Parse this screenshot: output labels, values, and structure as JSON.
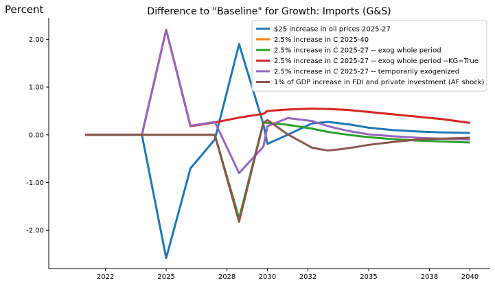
{
  "chart_data": {
    "type": "line",
    "title": "Difference to \"Baseline\" for Growth: Imports (G&S)",
    "ylabel": "Percent",
    "xlabel": "",
    "x_range": [
      2019.2,
      2041.0
    ],
    "ylim": [
      -2.8,
      2.45
    ],
    "x_ticks": [
      2022,
      2025,
      2028,
      2030,
      2032,
      2035,
      2038,
      2040
    ],
    "x_tick_labels": [
      "2022",
      "2025",
      "2028",
      "2030",
      "2032",
      "2035",
      "2038",
      "2040"
    ],
    "y_ticks": [
      -2,
      -1,
      0,
      1,
      2
    ],
    "y_tick_labels": [
      "-2.00",
      "-1.00",
      "0.00",
      "1.00",
      "2.00"
    ],
    "grid": false,
    "legend_position": "top-right",
    "series": [
      {
        "name": "$25 increase in oil prices 2025-27",
        "color": "#1f77b4",
        "points": [
          [
            2021,
            0
          ],
          [
            2022.2,
            0
          ],
          [
            2023.8,
            0
          ],
          [
            2025,
            -2.58
          ],
          [
            2026.2,
            -0.7
          ],
          [
            2027.4,
            -0.1
          ],
          [
            2028.6,
            1.9
          ],
          [
            2029.8,
            0.22
          ],
          [
            2030,
            -0.19
          ],
          [
            2031,
            0
          ],
          [
            2032.2,
            0.24
          ],
          [
            2033,
            0.27
          ],
          [
            2034,
            0.22
          ],
          [
            2035,
            0.15
          ],
          [
            2036.2,
            0.1
          ],
          [
            2037.4,
            0.07
          ],
          [
            2038.6,
            0.05
          ],
          [
            2040,
            0.04
          ]
        ]
      },
      {
        "name": "2.5% increase in C 2025-40",
        "color": "#ff7f0e",
        "points": [
          [
            2021,
            0
          ],
          [
            2022.2,
            0
          ],
          [
            2023.8,
            0
          ],
          [
            2025,
            2.2
          ],
          [
            2026.2,
            0.18
          ],
          [
            2027.4,
            0.26
          ],
          [
            2028.6,
            0.36
          ],
          [
            2029.8,
            0.44
          ],
          [
            2030,
            0.5
          ],
          [
            2031,
            0.53
          ],
          [
            2032.2,
            0.55
          ],
          [
            2033,
            0.54
          ],
          [
            2034,
            0.52
          ],
          [
            2035,
            0.48
          ],
          [
            2036.2,
            0.43
          ],
          [
            2037.4,
            0.38
          ],
          [
            2038.6,
            0.33
          ],
          [
            2040,
            0.25
          ]
        ]
      },
      {
        "name": "2.5% increase in C 2025-27 -- exog whole period",
        "color": "#2ca02c",
        "points": [
          [
            2021,
            0
          ],
          [
            2022.2,
            0
          ],
          [
            2023.8,
            0
          ],
          [
            2025,
            0
          ],
          [
            2026.2,
            0
          ],
          [
            2027.4,
            0
          ],
          [
            2028.6,
            -1.75
          ],
          [
            2029.8,
            0.26
          ],
          [
            2030,
            0.25
          ],
          [
            2031,
            0.21
          ],
          [
            2032.2,
            0.13
          ],
          [
            2033,
            0.06
          ],
          [
            2034,
            0
          ],
          [
            2035,
            -0.05
          ],
          [
            2036.2,
            -0.09
          ],
          [
            2037.4,
            -0.12
          ],
          [
            2038.6,
            -0.14
          ],
          [
            2040,
            -0.16
          ]
        ]
      },
      {
        "name": "2.5% increase in C 2025-27 -- exog whole period --KG=True",
        "color": "#d62728",
        "points": [
          [
            2021,
            0
          ],
          [
            2022.2,
            0
          ],
          [
            2023.8,
            0
          ],
          [
            2025,
            2.2
          ],
          [
            2026.2,
            0.18
          ],
          [
            2027.4,
            0.26
          ],
          [
            2028.6,
            0.36
          ],
          [
            2029.8,
            0.44
          ],
          [
            2030,
            0.5
          ],
          [
            2031,
            0.53
          ],
          [
            2032.2,
            0.55
          ],
          [
            2033,
            0.54
          ],
          [
            2034,
            0.52
          ],
          [
            2035,
            0.48
          ],
          [
            2036.2,
            0.43
          ],
          [
            2037.4,
            0.38
          ],
          [
            2038.6,
            0.33
          ],
          [
            2040,
            0.25
          ]
        ]
      },
      {
        "name": "2.5% increase in C 2025-27 -- temporarily exogenized",
        "color": "#9467bd",
        "points": [
          [
            2021,
            0
          ],
          [
            2022.2,
            0
          ],
          [
            2023.8,
            0
          ],
          [
            2025,
            2.2
          ],
          [
            2026.2,
            0.19
          ],
          [
            2027.4,
            0.27
          ],
          [
            2028.6,
            -0.8
          ],
          [
            2029.8,
            -0.25
          ],
          [
            2030,
            0.18
          ],
          [
            2031,
            0.35
          ],
          [
            2032.2,
            0.29
          ],
          [
            2033,
            0.18
          ],
          [
            2034,
            0.08
          ],
          [
            2035,
            0.01
          ],
          [
            2036.2,
            -0.03
          ],
          [
            2037.4,
            -0.06
          ],
          [
            2038.6,
            -0.08
          ],
          [
            2040,
            -0.1
          ]
        ]
      },
      {
        "name": "1% of GDP increase in FDI and private investment (AF shock)",
        "color": "#8c564b",
        "points": [
          [
            2021,
            0
          ],
          [
            2022.2,
            0
          ],
          [
            2023.8,
            0
          ],
          [
            2025,
            0
          ],
          [
            2026.2,
            0
          ],
          [
            2027.4,
            0
          ],
          [
            2028.6,
            -1.82
          ],
          [
            2029.8,
            0.25
          ],
          [
            2030,
            0.31
          ],
          [
            2031,
            0.01
          ],
          [
            2032.2,
            -0.27
          ],
          [
            2033,
            -0.33
          ],
          [
            2034,
            -0.28
          ],
          [
            2035,
            -0.21
          ],
          [
            2036.2,
            -0.15
          ],
          [
            2037.4,
            -0.1
          ],
          [
            2038.6,
            -0.08
          ],
          [
            2040,
            -0.06
          ]
        ]
      }
    ]
  }
}
